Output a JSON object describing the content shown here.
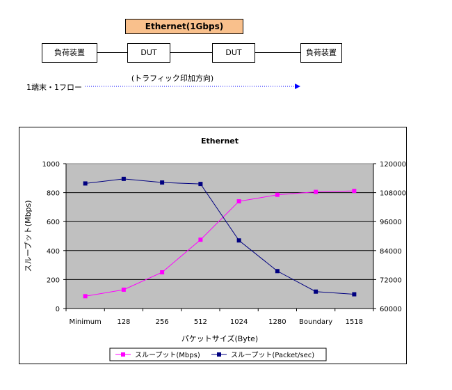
{
  "diagram": {
    "banner": "Ethernet(1Gbps)",
    "nodes": [
      "負荷装置",
      "DUT",
      "DUT",
      "負荷装置"
    ],
    "flow_direction_label": "(トラフィック印加方向)",
    "flow_label": "1端末・1フロー"
  },
  "chart_data": {
    "type": "line",
    "title": "Ethernet",
    "xlabel": "パケットサイズ(Byte)",
    "ylabel": "スループット(Mbps)",
    "y2label": "スループット(Packet/sec)",
    "categories": [
      "Minimum",
      "128",
      "256",
      "512",
      "1024",
      "1280",
      "Boundary",
      "1518"
    ],
    "ylim": [
      0,
      1000
    ],
    "yticks": [
      "0",
      "200",
      "400",
      "600",
      "800",
      "1000"
    ],
    "y2lim": [
      60000,
      120000
    ],
    "y2ticks": [
      "60000",
      "72000",
      "84000",
      "96000",
      "108000",
      "120000"
    ],
    "grid": true,
    "legend_position": "bottom",
    "series": [
      {
        "name": "スループット(Mbps)",
        "axis": "left",
        "color": "#ff00ff",
        "marker": "square",
        "values": [
          85,
          130,
          250,
          475,
          740,
          785,
          805,
          812
        ]
      },
      {
        "name": "スループット(Packet/sec)",
        "axis": "right",
        "color": "#000080",
        "marker": "square",
        "values": [
          111800,
          113700,
          112200,
          111600,
          88200,
          75500,
          67000,
          65900
        ]
      }
    ],
    "plot_background": "#c0c0c0"
  }
}
